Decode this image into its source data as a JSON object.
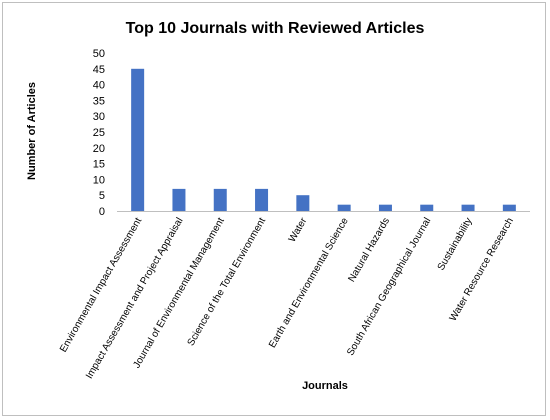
{
  "chart_data": {
    "type": "bar",
    "title": "Top 10  Journals with Reviewed Articles",
    "xlabel": "Journals",
    "ylabel": "Number  of  Articles",
    "categories": [
      "Environmental Impact Assessment",
      "Impact Assessment and Project Appraisal",
      "Journal of Environmental Management",
      "Science of the Total Environment",
      "Water",
      "Earth and Environmental Science",
      "Natural Hazards",
      "South African Geographical Journal",
      "Sustainability",
      "Water Resource Research"
    ],
    "values": [
      45,
      7,
      7,
      7,
      5,
      2,
      2,
      2,
      2,
      2
    ],
    "ylim": [
      0,
      50
    ],
    "yticks": [
      0,
      5,
      10,
      15,
      20,
      25,
      30,
      35,
      40,
      45,
      50
    ],
    "grid": false,
    "legend": "none",
    "bar_color": "#4472C4"
  }
}
